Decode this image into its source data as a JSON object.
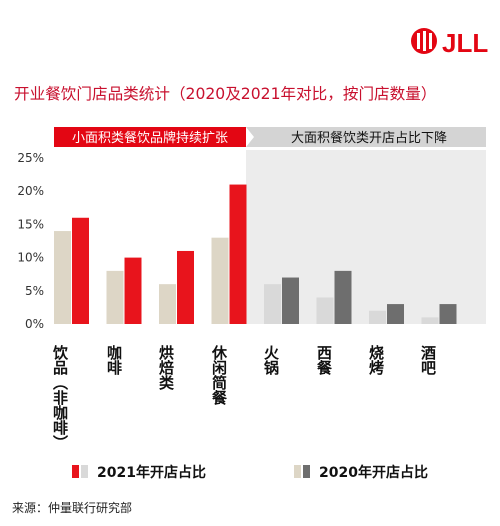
{
  "brand": {
    "name": "JLL",
    "accent": "#e30613"
  },
  "title": "开业餐饮门店品类统计（2020及2021年对比，按门店数量）",
  "source": "来源：仲量联行研究部",
  "colors": {
    "title": "#c8102e",
    "bar_2021_small": "#e8141c",
    "bar_2020_small": "#ddd6c6",
    "bar_2021_large": "#6e6e6e",
    "bar_2020_large": "#d9d9d9",
    "band_small": "#e30613",
    "band_large": "#d4d4d4",
    "shade_large": "#ececec",
    "axis_text": "#333333"
  },
  "chart_data": {
    "type": "bar",
    "title": "开业餐饮门店品类统计（2020及2021年对比，按门店数量）",
    "ylim": [
      0,
      25
    ],
    "yticks": [
      "0%",
      "5%",
      "10%",
      "15%",
      "20%",
      "25%"
    ],
    "grid": false,
    "legend": "bottom",
    "groups": [
      {
        "label": "小面积类餐饮品牌持续扩张",
        "categories": [
          0,
          1,
          2,
          3
        ]
      },
      {
        "label": "大面积餐饮类开店占比下降",
        "categories": [
          4,
          5,
          6,
          7
        ]
      }
    ],
    "categories": [
      "饮品（非咖啡）",
      "咖啡",
      "烘焙类",
      "休闲简餐",
      "火锅",
      "西餐",
      "烧烤",
      "酒吧"
    ],
    "series": [
      {
        "name": "2021年开店占比",
        "values": [
          16,
          10,
          11,
          21,
          7,
          8,
          3,
          3
        ]
      },
      {
        "name": "2020年开店占比",
        "values": [
          14,
          8,
          6,
          13,
          6,
          4,
          2,
          1
        ]
      }
    ]
  }
}
